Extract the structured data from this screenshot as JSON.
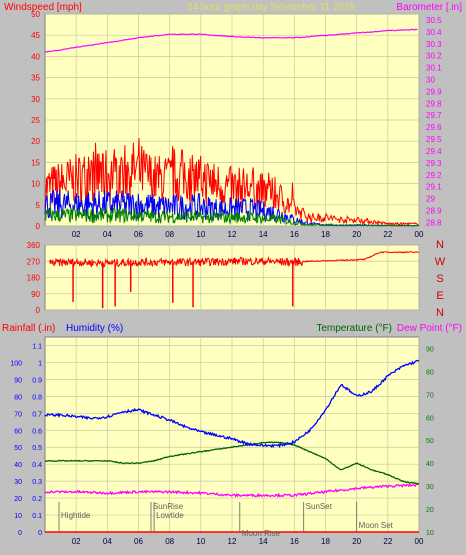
{
  "colors": {
    "background": "#c0c0c0",
    "plot_bg": "#ffffc0",
    "grid": "#c8c8a0",
    "red": "#ff0000",
    "blue": "#0000ff",
    "green": "#008000",
    "magenta": "#ff00ff",
    "darkgreen": "#006400",
    "dark_red": "#cc0000",
    "yellow_title": "#e0e060",
    "gray_text": "#606060"
  },
  "header": {
    "left_label": "Windspeed [mph]",
    "center_label": "24 hour graph day   November 11 2018",
    "right_label": "Barometer [.in]"
  },
  "compass": [
    "N",
    "W",
    "S",
    "E",
    "N"
  ],
  "bottom_header": {
    "rainfall": "Rainfall (.in)",
    "humidity": "Humidity (%)",
    "temperature": "Temperature (°F)",
    "dewpoint": "Dew Point (°F)"
  },
  "chart_data": [
    {
      "type": "line",
      "name": "wind-barometer",
      "x_ticks": [
        "02",
        "04",
        "06",
        "08",
        "10",
        "12",
        "14",
        "16",
        "18",
        "20",
        "22",
        "00"
      ],
      "xlim": [
        0,
        24
      ],
      "y_left_ticks": [
        "0",
        "5",
        "10",
        "15",
        "20",
        "25",
        "30",
        "35",
        "40",
        "45",
        "50"
      ],
      "y_left_lim": [
        0,
        50
      ],
      "y_right_ticks": [
        "28.8",
        "28.9",
        "29",
        "29.1",
        "29.2",
        "29.3",
        "29.4",
        "29.5",
        "29.6",
        "29.7",
        "29.8",
        "29.9",
        "30",
        "30.1",
        "30.2",
        "30.3",
        "30.4",
        "30.5"
      ],
      "y_right_lim": [
        28.77,
        30.55
      ],
      "series": [
        {
          "role": "gust",
          "color": "#ff0000",
          "x": [
            0,
            1,
            2,
            3,
            4,
            5,
            6,
            7,
            8,
            9,
            10,
            11,
            12,
            13,
            14,
            15,
            16,
            17,
            18,
            19,
            20,
            21,
            22,
            23,
            24
          ],
          "y": [
            9,
            10,
            11,
            12,
            12,
            13,
            13,
            11,
            11,
            12,
            11,
            10,
            9,
            9,
            8,
            7,
            4,
            2,
            2,
            1.5,
            1.5,
            1,
            0.5,
            0.5,
            0.5
          ]
        },
        {
          "role": "average",
          "color": "#0000ff",
          "x": [
            0,
            1,
            2,
            3,
            4,
            5,
            6,
            7,
            8,
            9,
            10,
            11,
            12,
            13,
            14,
            15,
            16,
            17,
            18,
            19,
            20,
            21,
            22,
            23,
            24
          ],
          "y": [
            5,
            5,
            5,
            5,
            5,
            5,
            5,
            4.5,
            4.5,
            4.5,
            4.5,
            4,
            4,
            4,
            3.5,
            3,
            1.5,
            0.5,
            0.3,
            0.2,
            0.2,
            0.2,
            0.1,
            0.1,
            0.1
          ]
        },
        {
          "role": "direction-avg",
          "color": "#008000",
          "x": [
            0,
            1,
            2,
            3,
            4,
            5,
            6,
            7,
            8,
            9,
            10,
            11,
            12,
            13,
            14,
            15,
            16,
            17,
            18,
            19,
            20,
            21,
            22,
            23,
            24
          ],
          "y": [
            2.5,
            2.5,
            2.5,
            2.5,
            2.5,
            2.5,
            2.5,
            2.2,
            2.2,
            2.2,
            2,
            2,
            2,
            2,
            1.8,
            1.5,
            0.8,
            0.3,
            0.2,
            0.1,
            0.1,
            0.1,
            0.1,
            0.1,
            0.1
          ]
        },
        {
          "role": "barometer",
          "color": "#ff00ff",
          "x": [
            0,
            2,
            4,
            6,
            8,
            10,
            12,
            14,
            16,
            18,
            20,
            22,
            24
          ],
          "y": [
            30.23,
            30.27,
            30.31,
            30.35,
            30.38,
            30.38,
            30.36,
            30.35,
            30.35,
            30.37,
            30.39,
            30.41,
            30.42
          ]
        }
      ]
    },
    {
      "type": "line",
      "name": "wind-direction",
      "x_ticks": [
        "02",
        "04",
        "06",
        "08",
        "10",
        "12",
        "14",
        "16",
        "18",
        "20",
        "22",
        "00"
      ],
      "xlim": [
        0,
        24
      ],
      "y_ticks": [
        "0",
        "90",
        "180",
        "270",
        "360"
      ],
      "ylim": [
        0,
        360
      ],
      "series": [
        {
          "role": "direction",
          "color": "#ff0000",
          "x": [
            0,
            2,
            4,
            6,
            8,
            10,
            12,
            14,
            16,
            17,
            19,
            20.5,
            21.5,
            24
          ],
          "y": [
            260,
            265,
            260,
            265,
            265,
            265,
            270,
            270,
            265,
            270,
            275,
            280,
            320,
            320
          ]
        },
        {
          "role": "spikes",
          "color": "#ff0000",
          "x": [
            1.8,
            3.7,
            4.5,
            5.5,
            8.2,
            9.5,
            15.9
          ],
          "y": [
            45,
            10,
            20,
            100,
            40,
            15,
            20
          ]
        }
      ]
    },
    {
      "type": "line",
      "name": "temp-humidity",
      "x_ticks": [
        "02",
        "04",
        "06",
        "08",
        "10",
        "12",
        "14",
        "16",
        "18",
        "20",
        "22",
        "00"
      ],
      "xlim": [
        0,
        24
      ],
      "y_left_ticks": [
        "0",
        "0.1",
        "0.2",
        "0.3",
        "0.4",
        "0.5",
        "0.6",
        "0.7",
        "0.8",
        "0.9",
        "1",
        "1.1"
      ],
      "y_left_lim": [
        0,
        1.15
      ],
      "y_hum_ticks": [
        "0",
        "10",
        "20",
        "30",
        "40",
        "50",
        "60",
        "70",
        "80",
        "90",
        "100"
      ],
      "y_hum_lim": [
        0,
        115
      ],
      "y_right_ticks": [
        "10",
        "20",
        "30",
        "40",
        "50",
        "60",
        "70",
        "80",
        "90"
      ],
      "y_right_lim": [
        10,
        95
      ],
      "series": [
        {
          "role": "humidity",
          "color": "#0000ff",
          "x": [
            0,
            1,
            2,
            3,
            4,
            5,
            6,
            7,
            8,
            9,
            10,
            11,
            12,
            13,
            14,
            15,
            16,
            17,
            18,
            19,
            20,
            21,
            22,
            23,
            24
          ],
          "y": [
            69,
            69,
            68,
            67,
            68,
            71,
            72,
            69,
            66,
            62,
            59,
            57,
            55,
            52,
            51,
            51,
            53,
            60,
            72,
            87,
            80,
            83,
            92,
            98,
            101
          ]
        },
        {
          "role": "temperature",
          "color": "#006400",
          "x": [
            0,
            1,
            2,
            3,
            4,
            5,
            6,
            7,
            8,
            9,
            10,
            11,
            12,
            13,
            14,
            15,
            16,
            17,
            18,
            19,
            20,
            21,
            22,
            23,
            24
          ],
          "y": [
            41,
            41,
            41,
            41,
            41,
            40,
            40,
            41,
            43,
            44,
            45,
            46,
            47,
            48,
            49,
            49,
            48,
            45,
            42,
            37,
            40,
            37,
            35,
            32,
            31
          ]
        },
        {
          "role": "dewpoint",
          "color": "#ff00ff",
          "x": [
            0,
            2,
            4,
            6,
            8,
            10,
            12,
            14,
            16,
            18,
            20,
            22,
            24
          ],
          "y": [
            27.5,
            27.5,
            27,
            27.5,
            27.5,
            27,
            26,
            26,
            26,
            27.5,
            29,
            30,
            30.5
          ]
        },
        {
          "role": "rainfall",
          "color": "#ff0000",
          "x": [
            0,
            24
          ],
          "y": [
            0,
            0
          ]
        }
      ],
      "annotations": [
        {
          "text": "Hightide",
          "x": 0.9,
          "row": 0
        },
        {
          "text": "SunRise",
          "x": 6.8,
          "row": 1
        },
        {
          "text": "Lowtide",
          "x": 7.0,
          "row": 0
        },
        {
          "text": "Moon Rise",
          "x": 12.5,
          "row": 2
        },
        {
          "text": "SunSet",
          "x": 16.6,
          "row": 1
        },
        {
          "text": "Moon Set",
          "x": 20.0,
          "row": 3
        }
      ]
    }
  ]
}
